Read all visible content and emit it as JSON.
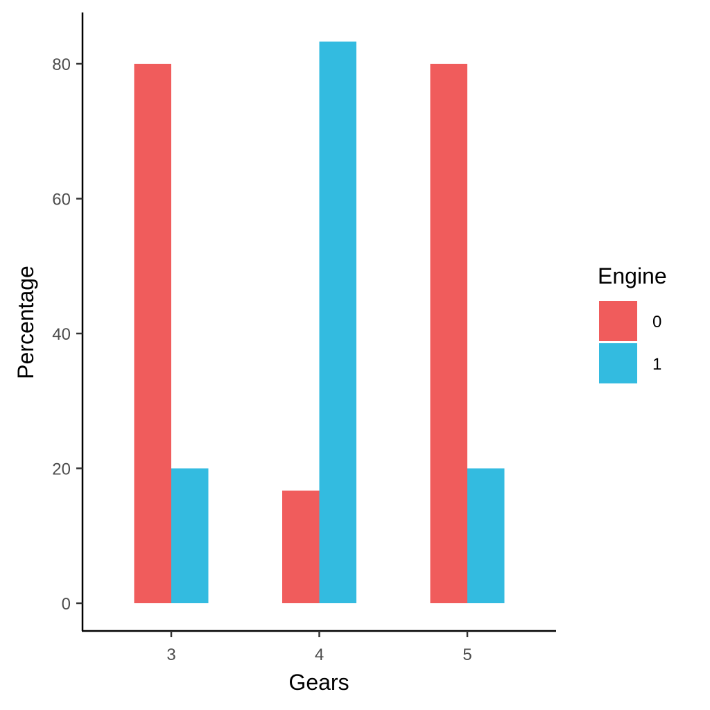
{
  "chart_data": {
    "type": "bar",
    "categories": [
      "3",
      "4",
      "5"
    ],
    "xlabel": "Gears",
    "ylabel": "Percentage",
    "ylim": [
      0,
      87.5
    ],
    "yticks": [
      0,
      20,
      40,
      60,
      80
    ],
    "grid": false,
    "legend": {
      "title": "Engine",
      "placement": "right"
    },
    "series": [
      {
        "name": "0",
        "color": "#F05C5C",
        "values": [
          80,
          16.7,
          80
        ]
      },
      {
        "name": "1",
        "color": "#33BBE0",
        "values": [
          20,
          83.3,
          20
        ]
      }
    ]
  }
}
